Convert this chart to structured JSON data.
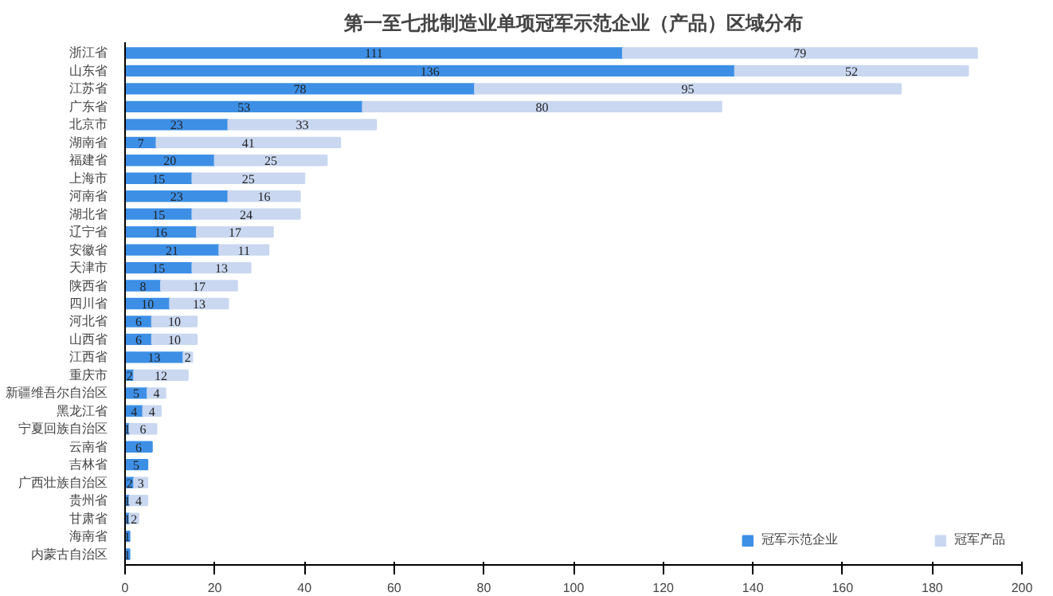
{
  "chart_data": {
    "type": "bar",
    "orientation": "horizontal",
    "stacked": true,
    "title": "第一至七批制造业单项冠军示范企业（产品）区域分布",
    "categories": [
      "浙江省",
      "山东省",
      "江苏省",
      "广东省",
      "北京市",
      "湖南省",
      "福建省",
      "上海市",
      "河南省",
      "湖北省",
      "辽宁省",
      "安徽省",
      "天津市",
      "陕西省",
      "四川省",
      "河北省",
      "山西省",
      "江西省",
      "重庆市",
      "新疆维吾尔自治区",
      "黑龙江省",
      "宁夏回族自治区",
      "云南省",
      "吉林省",
      "广西壮族自治区",
      "贵州省",
      "甘肃省",
      "海南省",
      "内蒙古自治区"
    ],
    "series": [
      {
        "name": "冠军示范企业",
        "color": "#3d8fe6",
        "values": [
          111,
          136,
          78,
          53,
          23,
          7,
          20,
          15,
          23,
          15,
          16,
          21,
          15,
          8,
          10,
          6,
          6,
          13,
          2,
          5,
          4,
          1,
          6,
          5,
          2,
          1,
          1,
          1,
          1
        ]
      },
      {
        "name": "冠军产品",
        "color": "#c9d7f0",
        "values": [
          79,
          52,
          95,
          80,
          33,
          41,
          25,
          25,
          16,
          24,
          17,
          11,
          13,
          17,
          13,
          10,
          10,
          2,
          12,
          4,
          4,
          6,
          null,
          null,
          3,
          4,
          2,
          null,
          null
        ]
      }
    ],
    "xlim": [
      0,
      200
    ],
    "xticks": [
      0,
      20,
      40,
      60,
      80,
      100,
      120,
      140,
      160,
      180,
      200
    ],
    "data_labels": true,
    "legend": "bottom right",
    "grid": false
  }
}
